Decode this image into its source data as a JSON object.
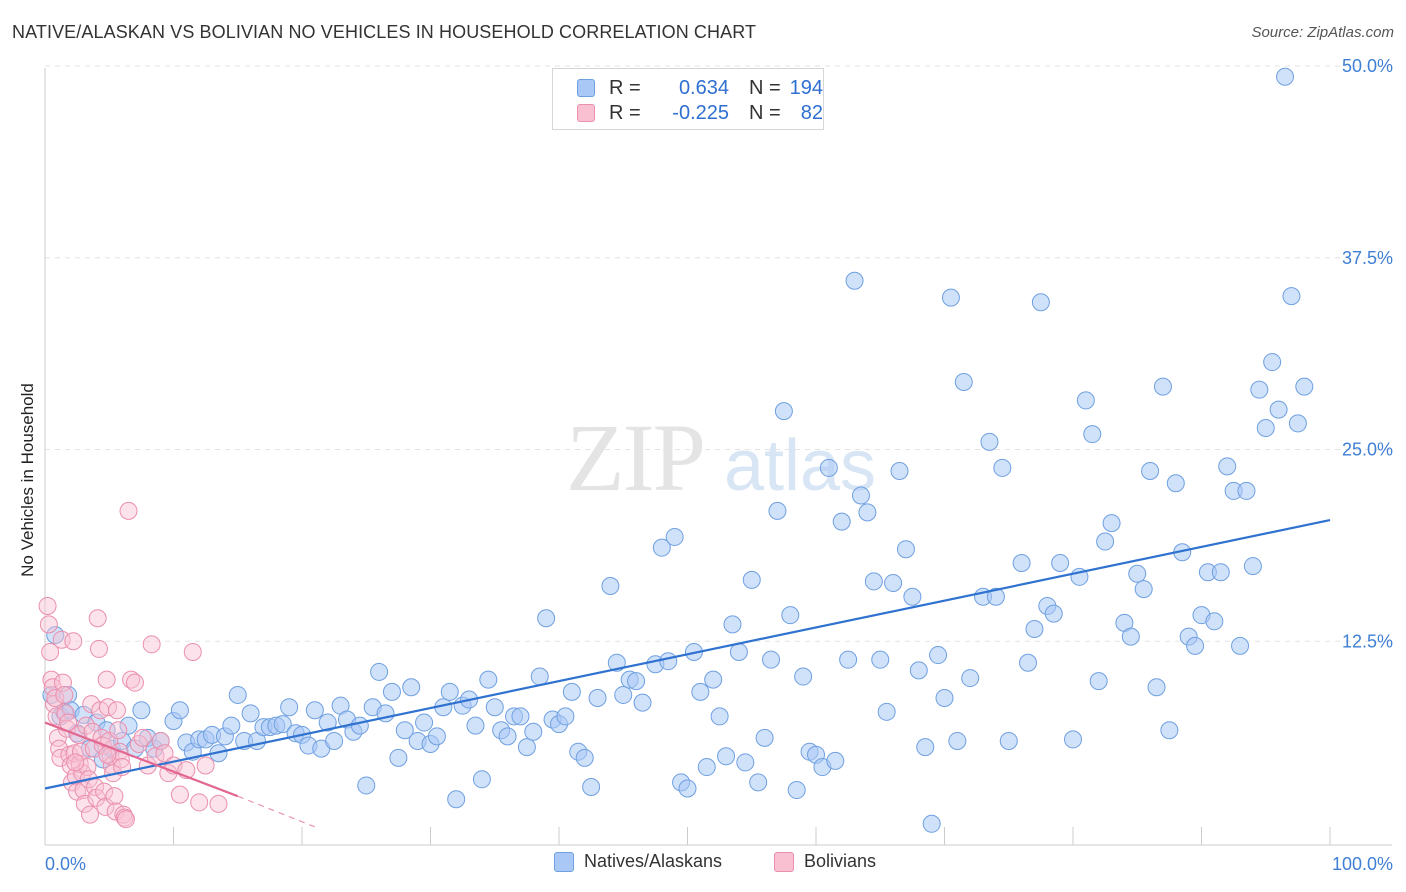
{
  "title": "NATIVE/ALASKAN VS BOLIVIAN NO VEHICLES IN HOUSEHOLD CORRELATION CHART",
  "source": "Source: ZipAtlas.com",
  "watermark": {
    "zip": "ZIP",
    "atlas": "atlas"
  },
  "legend": {
    "rows": [
      {
        "r_label": "R =",
        "r_value": "0.634",
        "n_label": "N =",
        "n_value": "194",
        "color": "#a9c8f5",
        "stroke": "#6fa0e0"
      },
      {
        "r_label": "R =",
        "r_value": "-0.225",
        "n_label": "N =",
        "n_value": "82",
        "color": "#f9c0d2",
        "stroke": "#ea8fad"
      }
    ]
  },
  "bottom_legend": [
    {
      "label": "Natives/Alaskans",
      "color": "#a9c8f5",
      "stroke": "#6fa0e0"
    },
    {
      "label": "Bolivians",
      "color": "#f9c0d2",
      "stroke": "#ea8fad"
    }
  ],
  "chart_data": {
    "type": "scatter",
    "title": "NATIVE/ALASKAN VS BOLIVIAN NO VEHICLES IN HOUSEHOLD CORRELATION CHART",
    "xlabel": "",
    "ylabel": "No Vehicles in Household",
    "xlim": [
      0,
      100
    ],
    "ylim": [
      0,
      50
    ],
    "x_tick_labels": [
      "0.0%",
      "100.0%"
    ],
    "y_ticks": [
      12.5,
      25.0,
      37.5,
      50.0
    ],
    "y_tick_labels": [
      "12.5%",
      "25.0%",
      "37.5%",
      "50.0%"
    ],
    "grid": true,
    "colors": {
      "natives_fill": "#a9c8f5",
      "natives_stroke": "#6fa0e0",
      "natives_line": "#2f72d0",
      "bolivians_fill": "#f9c0d2",
      "bolivians_stroke": "#ea8fad",
      "bolivians_line": "#e26892",
      "tick_label": "#3f7fd6",
      "grid": "#e3e3e3"
    },
    "series": [
      {
        "name": "Natives/Alaskans",
        "trend": {
          "x": [
            0,
            100
          ],
          "y": [
            2.9,
            20.4
          ]
        },
        "points": [
          [
            0.5,
            9.0
          ],
          [
            0.8,
            12.9
          ],
          [
            1.2,
            7.6
          ],
          [
            1.5,
            7.9
          ],
          [
            1.8,
            9.0
          ],
          [
            2.0,
            8.0
          ],
          [
            2.5,
            6.5
          ],
          [
            3.0,
            7.7
          ],
          [
            3.5,
            5.5
          ],
          [
            4.0,
            7.2
          ],
          [
            4.5,
            4.8
          ],
          [
            4.8,
            6.7
          ],
          [
            5.2,
            5.5
          ],
          [
            6.0,
            6.0
          ],
          [
            6.5,
            7.0
          ],
          [
            7.0,
            5.5
          ],
          [
            7.5,
            8.0
          ],
          [
            8.0,
            6.2
          ],
          [
            8.5,
            5.5
          ],
          [
            9.0,
            6.0
          ],
          [
            10.0,
            7.3
          ],
          [
            10.5,
            8.0
          ],
          [
            11.0,
            5.9
          ],
          [
            11.5,
            5.3
          ],
          [
            12.0,
            6.1
          ],
          [
            12.5,
            6.1
          ],
          [
            13.0,
            6.4
          ],
          [
            13.5,
            5.2
          ],
          [
            14.0,
            6.3
          ],
          [
            14.5,
            7.0
          ],
          [
            15.0,
            9.0
          ],
          [
            15.5,
            6.0
          ],
          [
            16.0,
            7.8
          ],
          [
            16.5,
            6.0
          ],
          [
            17.0,
            6.9
          ],
          [
            17.5,
            6.9
          ],
          [
            18.0,
            7.0
          ],
          [
            18.5,
            7.1
          ],
          [
            19.0,
            8.2
          ],
          [
            19.5,
            6.5
          ],
          [
            20.0,
            6.4
          ],
          [
            20.5,
            5.7
          ],
          [
            21.0,
            8.0
          ],
          [
            21.5,
            5.5
          ],
          [
            22.0,
            7.2
          ],
          [
            22.5,
            6.0
          ],
          [
            23.0,
            8.3
          ],
          [
            23.5,
            7.4
          ],
          [
            24.0,
            6.6
          ],
          [
            24.5,
            7.0
          ],
          [
            25.0,
            3.1
          ],
          [
            25.5,
            8.2
          ],
          [
            26.0,
            10.5
          ],
          [
            26.5,
            7.8
          ],
          [
            27.0,
            9.2
          ],
          [
            27.5,
            4.9
          ],
          [
            28.0,
            6.7
          ],
          [
            28.5,
            9.5
          ],
          [
            29.0,
            6.0
          ],
          [
            29.5,
            7.2
          ],
          [
            30.0,
            5.8
          ],
          [
            30.5,
            6.3
          ],
          [
            31.0,
            8.2
          ],
          [
            31.5,
            9.2
          ],
          [
            32.0,
            2.2
          ],
          [
            32.5,
            8.3
          ],
          [
            33.0,
            8.7
          ],
          [
            33.5,
            7.0
          ],
          [
            34.0,
            3.5
          ],
          [
            34.5,
            10.0
          ],
          [
            35.0,
            8.2
          ],
          [
            35.5,
            6.7
          ],
          [
            36.0,
            6.3
          ],
          [
            36.5,
            7.6
          ],
          [
            37.0,
            7.6
          ],
          [
            37.5,
            5.6
          ],
          [
            38.0,
            6.6
          ],
          [
            38.5,
            10.2
          ],
          [
            39.0,
            14.0
          ],
          [
            39.5,
            7.4
          ],
          [
            40.0,
            7.1
          ],
          [
            40.5,
            7.6
          ],
          [
            41.0,
            9.2
          ],
          [
            41.5,
            5.3
          ],
          [
            42.0,
            4.9
          ],
          [
            42.5,
            3.0
          ],
          [
            43.0,
            8.8
          ],
          [
            44.0,
            16.1
          ],
          [
            44.5,
            11.1
          ],
          [
            45.0,
            9.0
          ],
          [
            45.5,
            10.0
          ],
          [
            46.0,
            9.9
          ],
          [
            46.5,
            8.5
          ],
          [
            47.5,
            11.0
          ],
          [
            48.0,
            18.6
          ],
          [
            48.5,
            11.2
          ],
          [
            49.0,
            19.3
          ],
          [
            49.5,
            3.3
          ],
          [
            50.0,
            2.9
          ],
          [
            50.5,
            11.8
          ],
          [
            51.0,
            9.2
          ],
          [
            51.5,
            4.3
          ],
          [
            52.0,
            10.0
          ],
          [
            52.5,
            7.6
          ],
          [
            53.0,
            5.0
          ],
          [
            53.5,
            13.6
          ],
          [
            54.0,
            11.8
          ],
          [
            54.5,
            4.6
          ],
          [
            55.0,
            16.5
          ],
          [
            55.5,
            3.3
          ],
          [
            56.0,
            6.2
          ],
          [
            56.5,
            11.3
          ],
          [
            57.0,
            21.0
          ],
          [
            57.5,
            27.5
          ],
          [
            58.0,
            14.2
          ],
          [
            58.5,
            2.8
          ],
          [
            59.0,
            10.2
          ],
          [
            59.5,
            5.3
          ],
          [
            60.0,
            5.1
          ],
          [
            60.5,
            4.3
          ],
          [
            61.0,
            23.8
          ],
          [
            61.5,
            4.7
          ],
          [
            62.0,
            20.3
          ],
          [
            62.5,
            11.3
          ],
          [
            63.0,
            36.0
          ],
          [
            63.5,
            22.0
          ],
          [
            64.0,
            20.9
          ],
          [
            64.5,
            16.4
          ],
          [
            65.0,
            11.3
          ],
          [
            65.5,
            7.9
          ],
          [
            66.0,
            16.3
          ],
          [
            66.5,
            23.6
          ],
          [
            67.0,
            18.5
          ],
          [
            67.5,
            15.4
          ],
          [
            68.0,
            10.6
          ],
          [
            68.5,
            5.6
          ],
          [
            69.0,
            0.6
          ],
          [
            69.5,
            11.6
          ],
          [
            70.0,
            8.8
          ],
          [
            70.5,
            34.9
          ],
          [
            71.0,
            6.0
          ],
          [
            71.5,
            29.4
          ],
          [
            72.0,
            10.1
          ],
          [
            73.0,
            15.4
          ],
          [
            73.5,
            25.5
          ],
          [
            74.0,
            15.4
          ],
          [
            74.5,
            23.8
          ],
          [
            75.0,
            6.0
          ],
          [
            76.0,
            17.6
          ],
          [
            76.5,
            11.1
          ],
          [
            77.0,
            13.3
          ],
          [
            77.5,
            34.6
          ],
          [
            78.0,
            14.8
          ],
          [
            78.5,
            14.3
          ],
          [
            79.0,
            17.6
          ],
          [
            80.0,
            6.1
          ],
          [
            80.5,
            16.7
          ],
          [
            81.0,
            28.2
          ],
          [
            81.5,
            26.0
          ],
          [
            82.0,
            9.9
          ],
          [
            82.5,
            19.0
          ],
          [
            83.0,
            20.2
          ],
          [
            84.0,
            13.7
          ],
          [
            84.5,
            12.8
          ],
          [
            85.0,
            16.9
          ],
          [
            85.5,
            15.9
          ],
          [
            86.0,
            23.6
          ],
          [
            86.5,
            9.5
          ],
          [
            87.0,
            29.1
          ],
          [
            87.5,
            6.7
          ],
          [
            88.0,
            22.8
          ],
          [
            88.5,
            18.3
          ],
          [
            89.0,
            12.8
          ],
          [
            89.5,
            12.2
          ],
          [
            90.0,
            14.2
          ],
          [
            90.5,
            17.0
          ],
          [
            91.0,
            13.8
          ],
          [
            91.5,
            17.0
          ],
          [
            92.0,
            23.9
          ],
          [
            92.5,
            22.3
          ],
          [
            93.0,
            12.2
          ],
          [
            93.5,
            22.3
          ],
          [
            94.0,
            17.4
          ],
          [
            94.5,
            28.9
          ],
          [
            95.0,
            26.4
          ],
          [
            95.5,
            30.7
          ],
          [
            96.0,
            27.6
          ],
          [
            96.5,
            49.3
          ],
          [
            97.0,
            35.0
          ],
          [
            97.5,
            26.7
          ],
          [
            98.0,
            29.1
          ]
        ]
      },
      {
        "name": "Bolivians",
        "trend": {
          "x": [
            0,
            15
          ],
          "y": [
            7.2,
            2.4
          ]
        },
        "trend_dashed": {
          "x": [
            15,
            21
          ],
          "y": [
            2.4,
            0.4
          ]
        },
        "points": [
          [
            0.2,
            14.8
          ],
          [
            0.3,
            13.6
          ],
          [
            0.4,
            11.8
          ],
          [
            0.5,
            10.0
          ],
          [
            0.6,
            9.5
          ],
          [
            0.7,
            8.4
          ],
          [
            0.8,
            8.8
          ],
          [
            0.9,
            7.6
          ],
          [
            1.0,
            6.2
          ],
          [
            1.1,
            5.5
          ],
          [
            1.2,
            4.9
          ],
          [
            1.3,
            12.6
          ],
          [
            1.4,
            9.8
          ],
          [
            1.5,
            9.0
          ],
          [
            1.6,
            7.8
          ],
          [
            1.7,
            6.8
          ],
          [
            1.8,
            7.2
          ],
          [
            1.9,
            5.1
          ],
          [
            2.0,
            4.4
          ],
          [
            2.1,
            3.3
          ],
          [
            2.2,
            12.5
          ],
          [
            2.3,
            5.2
          ],
          [
            2.4,
            3.7
          ],
          [
            2.5,
            2.7
          ],
          [
            2.6,
            6.4
          ],
          [
            2.7,
            4.5
          ],
          [
            2.8,
            5.3
          ],
          [
            2.9,
            3.9
          ],
          [
            3.0,
            2.8
          ],
          [
            3.1,
            1.9
          ],
          [
            3.2,
            7.0
          ],
          [
            3.3,
            4.3
          ],
          [
            3.4,
            3.5
          ],
          [
            3.5,
            1.2
          ],
          [
            3.6,
            8.4
          ],
          [
            3.7,
            6.6
          ],
          [
            3.8,
            5.5
          ],
          [
            3.9,
            3.0
          ],
          [
            4.0,
            2.3
          ],
          [
            4.1,
            14.0
          ],
          [
            4.2,
            12.0
          ],
          [
            4.3,
            8.0
          ],
          [
            4.4,
            6.2
          ],
          [
            4.5,
            5.7
          ],
          [
            4.6,
            2.7
          ],
          [
            4.7,
            1.7
          ],
          [
            4.8,
            10.0
          ],
          [
            4.9,
            8.2
          ],
          [
            5.0,
            6.0
          ],
          [
            5.1,
            5.0
          ],
          [
            5.2,
            4.4
          ],
          [
            5.3,
            3.9
          ],
          [
            5.4,
            2.4
          ],
          [
            5.5,
            1.4
          ],
          [
            5.6,
            8.0
          ],
          [
            5.7,
            6.7
          ],
          [
            5.8,
            5.3
          ],
          [
            5.9,
            4.8
          ],
          [
            6.0,
            4.3
          ],
          [
            6.1,
            1.2
          ],
          [
            6.2,
            1.0
          ],
          [
            6.3,
            0.9
          ],
          [
            6.5,
            21.0
          ],
          [
            6.7,
            10.0
          ],
          [
            7.0,
            9.8
          ],
          [
            7.3,
            5.8
          ],
          [
            7.6,
            6.2
          ],
          [
            8.0,
            4.4
          ],
          [
            8.3,
            12.3
          ],
          [
            8.6,
            5.0
          ],
          [
            9.0,
            6.0
          ],
          [
            9.3,
            5.2
          ],
          [
            9.6,
            3.9
          ],
          [
            10.0,
            4.4
          ],
          [
            10.5,
            2.5
          ],
          [
            11.0,
            4.1
          ],
          [
            11.5,
            11.8
          ],
          [
            12.0,
            2.0
          ],
          [
            12.5,
            4.4
          ],
          [
            13.5,
            1.9
          ],
          [
            2.35,
            4.6
          ],
          [
            4.85,
            5.1
          ]
        ]
      }
    ]
  }
}
